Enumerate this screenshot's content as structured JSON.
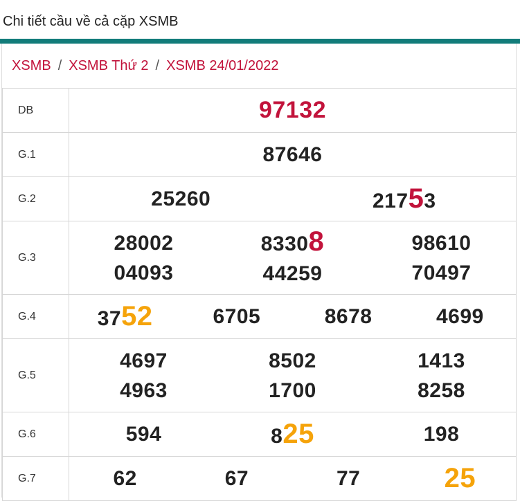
{
  "title": "Chi tiết cầu về cả cặp XSMB",
  "breadcrumb": [
    "XSMB",
    "XSMB Thứ 2",
    "XSMB 24/01/2022"
  ],
  "prizes": {
    "db": {
      "label": "DB",
      "value": "97132"
    },
    "g1": {
      "label": "G.1",
      "value": "87646"
    },
    "g2": {
      "label": "G.2",
      "a": "25260",
      "b_pre": "217",
      "b_hl": "5",
      "b_post": "3"
    },
    "g3": {
      "label": "G.3",
      "r1c1": "28002",
      "r1c2_pre": "8330",
      "r1c2_hl": "8",
      "r1c3": "98610",
      "r2c1": "04093",
      "r2c2": "44259",
      "r2c3": "70497"
    },
    "g4": {
      "label": "G.4",
      "c1_pre": "37",
      "c1_hl": "52",
      "c2": "6705",
      "c3": "8678",
      "c4": "4699"
    },
    "g5": {
      "label": "G.5",
      "r1c1": "4697",
      "r1c2": "8502",
      "r1c3": "1413",
      "r2c1": "4963",
      "r2c2": "1700",
      "r2c3": "8258"
    },
    "g6": {
      "label": "G.6",
      "c1": "594",
      "c2_pre": "8",
      "c2_hl": "25",
      "c3": "198"
    },
    "g7": {
      "label": "G.7",
      "c1": "62",
      "c2": "67",
      "c3": "77",
      "c4": "25"
    }
  },
  "colors": {
    "accent_bar": "#127c7a",
    "red": "#c2133b",
    "orange": "#f5a30a"
  }
}
